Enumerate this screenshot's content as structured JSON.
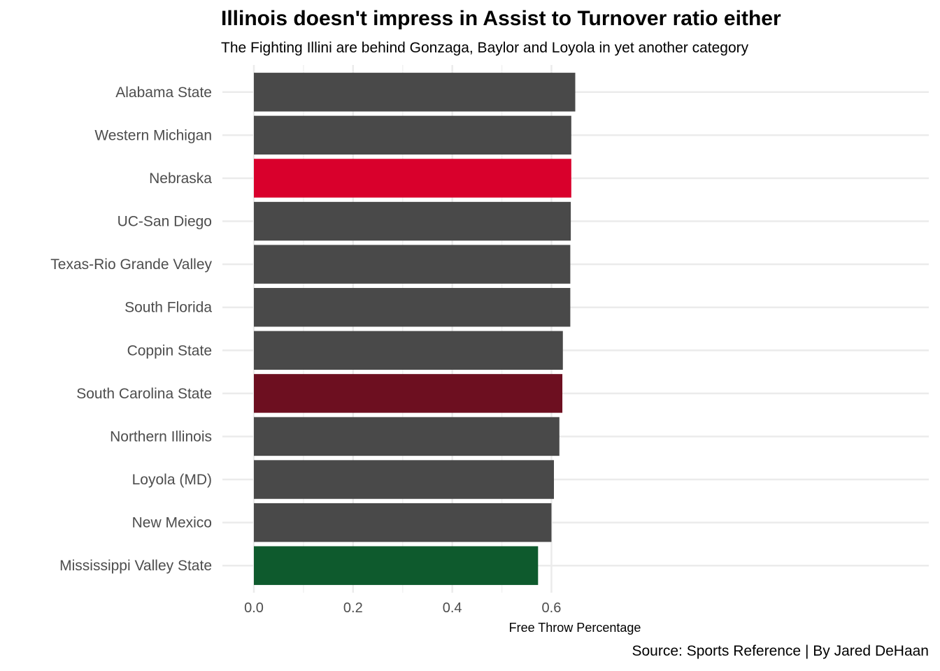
{
  "chart_data": {
    "type": "bar",
    "orientation": "horizontal",
    "title": "Illinois doesn't impress in Assist to Turnover ratio either",
    "subtitle": "The Fighting Illini are behind Gonzaga, Baylor and Loyola in yet another category",
    "caption": "Source: Sports Reference | By Jared DeHaan",
    "xlabel": "Free Throw Percentage",
    "ylabel": "",
    "xlim": [
      0,
      0.68
    ],
    "xticks": [
      {
        "value": 0.0,
        "label": "0.0"
      },
      {
        "value": 0.2,
        "label": "0.2"
      },
      {
        "value": 0.4,
        "label": "0.4"
      },
      {
        "value": 0.6,
        "label": "0.6"
      }
    ],
    "grid": true,
    "legend": "none",
    "bars": [
      {
        "category": "Alabama State",
        "value": 0.648,
        "color": "#494949"
      },
      {
        "category": "Western Michigan",
        "value": 0.64,
        "color": "#494949"
      },
      {
        "category": "Nebraska",
        "value": 0.64,
        "color": "#d9002c"
      },
      {
        "category": "UC-San Diego",
        "value": 0.639,
        "color": "#494949"
      },
      {
        "category": "Texas-Rio Grande Valley",
        "value": 0.638,
        "color": "#494949"
      },
      {
        "category": "South Florida",
        "value": 0.638,
        "color": "#494949"
      },
      {
        "category": "Coppin State",
        "value": 0.623,
        "color": "#494949"
      },
      {
        "category": "South Carolina State",
        "value": 0.622,
        "color": "#6d0f20"
      },
      {
        "category": "Northern Illinois",
        "value": 0.616,
        "color": "#494949"
      },
      {
        "category": "Loyola (MD)",
        "value": 0.605,
        "color": "#494949"
      },
      {
        "category": "New Mexico",
        "value": 0.6,
        "color": "#494949"
      },
      {
        "category": "Mississippi Valley State",
        "value": 0.573,
        "color": "#0e5a2d"
      }
    ]
  }
}
